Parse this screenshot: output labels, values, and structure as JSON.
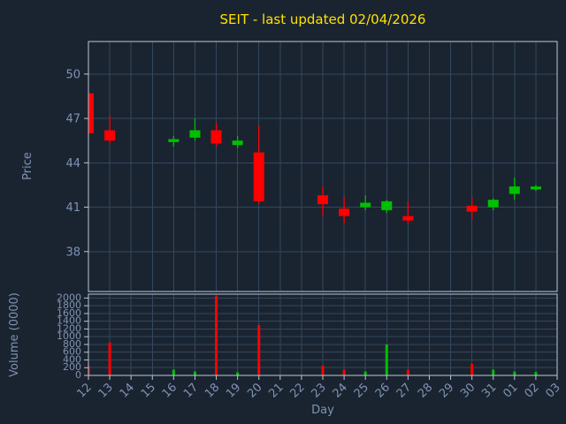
{
  "colors": {
    "background": "#1a2430",
    "title": "#ffe100",
    "axis_text": "#8093b4",
    "grid": "#33475e",
    "border": "#b9c7d9",
    "up": "#00c000",
    "down": "#ff0000"
  },
  "chart_data": {
    "type": "candlestick-with-volume",
    "title": "SEIT - last updated 02/04/2026",
    "xlabel": "Day",
    "ylabel_price": "Price",
    "ylabel_volume": "Volume (0000)",
    "price_ticks": [
      38,
      41,
      44,
      47,
      50
    ],
    "price_range": [
      35.3,
      52.2
    ],
    "volume_ticks": [
      0,
      200,
      400,
      600,
      800,
      1000,
      1200,
      1400,
      1600,
      1800,
      2000
    ],
    "volume_range": [
      0,
      2100
    ],
    "grid": true,
    "days": [
      "12",
      "13",
      "14",
      "15",
      "16",
      "17",
      "18",
      "19",
      "20",
      "21",
      "22",
      "23",
      "24",
      "25",
      "26",
      "27",
      "28",
      "29",
      "30",
      "31",
      "01",
      "02",
      "03"
    ],
    "candles": [
      {
        "open": 48.7,
        "high": 48.8,
        "low": 45.7,
        "close": 46.0
      },
      {
        "open": 46.2,
        "high": 47.2,
        "low": 45.3,
        "close": 45.5
      },
      null,
      null,
      {
        "open": 45.4,
        "high": 45.8,
        "low": 45.1,
        "close": 45.6
      },
      {
        "open": 45.7,
        "high": 47.0,
        "low": 45.5,
        "close": 46.2
      },
      {
        "open": 46.2,
        "high": 46.7,
        "low": 45.1,
        "close": 45.3
      },
      {
        "open": 45.2,
        "high": 45.8,
        "low": 45.0,
        "close": 45.5
      },
      {
        "open": 44.7,
        "high": 46.5,
        "low": 41.2,
        "close": 41.4
      },
      null,
      null,
      {
        "open": 41.8,
        "high": 42.4,
        "low": 40.4,
        "close": 41.2
      },
      {
        "open": 40.9,
        "high": 41.7,
        "low": 39.9,
        "close": 40.4
      },
      {
        "open": 41.0,
        "high": 41.8,
        "low": 40.8,
        "close": 41.3
      },
      {
        "open": 40.8,
        "high": 41.5,
        "low": 40.6,
        "close": 41.4
      },
      {
        "open": 40.4,
        "high": 41.4,
        "low": 39.9,
        "close": 40.1
      },
      null,
      null,
      {
        "open": 41.1,
        "high": 41.7,
        "low": 40.2,
        "close": 40.7
      },
      {
        "open": 41.0,
        "high": 41.6,
        "low": 40.8,
        "close": 41.5
      },
      {
        "open": 41.9,
        "high": 43.0,
        "low": 41.5,
        "close": 42.4
      },
      {
        "open": 42.2,
        "high": 42.5,
        "low": 42.1,
        "close": 42.4
      },
      null
    ],
    "volumes": [
      250,
      850,
      0,
      0,
      150,
      100,
      2050,
      80,
      1300,
      0,
      0,
      250,
      150,
      100,
      800,
      150,
      0,
      0,
      300,
      150,
      100,
      90,
      0
    ]
  }
}
